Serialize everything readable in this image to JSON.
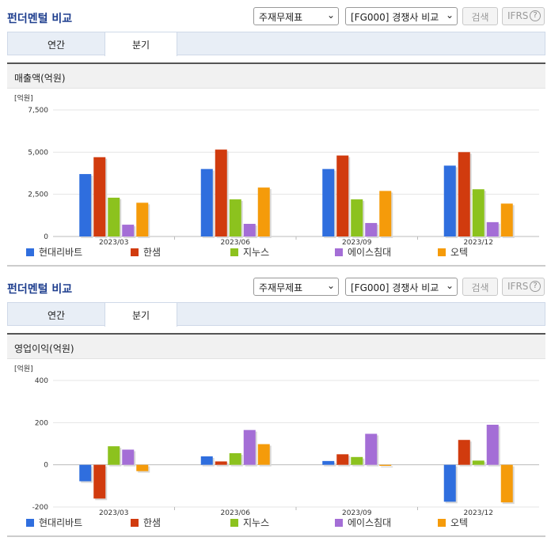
{
  "sections": [
    {
      "title": "펀더멘털 비교",
      "select1": "주재무제표",
      "select2": "[FG000] 경쟁사 비교",
      "search_label": "검색",
      "ifrs_label": "IFRS",
      "help_glyph": "?",
      "tabs": [
        "연간",
        "분기"
      ],
      "panel_title": "매출액(억원)"
    },
    {
      "title": "펀더멘털 비교",
      "select1": "주재무제표",
      "select2": "[FG000] 경쟁사 비교",
      "search_label": "검색",
      "ifrs_label": "IFRS",
      "help_glyph": "?",
      "tabs": [
        "연간",
        "분기"
      ],
      "panel_title": "영업이익(억원)"
    }
  ],
  "chart_data": [
    {
      "type": "bar",
      "unit_label": "[억원]",
      "categories": [
        "2023/03",
        "2023/06",
        "2023/09",
        "2023/12"
      ],
      "ylim": [
        0,
        7500
      ],
      "yticks": [
        0,
        2500,
        5000,
        7500
      ],
      "ytick_labels": [
        "0",
        "2,500",
        "5,000",
        "7,500"
      ],
      "series": [
        {
          "name": "현대리바트",
          "color": "#2f6ede",
          "values": [
            3700,
            4000,
            4000,
            4200
          ]
        },
        {
          "name": "한샘",
          "color": "#d13b0e",
          "values": [
            4700,
            5150,
            4800,
            5000
          ]
        },
        {
          "name": "지누스",
          "color": "#8cc21e",
          "values": [
            2300,
            2200,
            2200,
            2800
          ]
        },
        {
          "name": "에이스침대",
          "color": "#a46ed6",
          "values": [
            700,
            750,
            800,
            850
          ]
        },
        {
          "name": "오텍",
          "color": "#f59b0a",
          "values": [
            2000,
            2900,
            2700,
            1950
          ]
        }
      ]
    },
    {
      "type": "bar",
      "unit_label": "[억원]",
      "categories": [
        "2023/03",
        "2023/06",
        "2023/09",
        "2023/12"
      ],
      "ylim": [
        -200,
        400
      ],
      "yticks": [
        -200,
        0,
        200,
        400
      ],
      "ytick_labels": [
        "-200",
        "0",
        "200",
        "400"
      ],
      "series": [
        {
          "name": "현대리바트",
          "color": "#2f6ede",
          "values": [
            -78,
            40,
            18,
            -175
          ]
        },
        {
          "name": "한샘",
          "color": "#d13b0e",
          "values": [
            -160,
            16,
            50,
            118
          ]
        },
        {
          "name": "지누스",
          "color": "#8cc21e",
          "values": [
            88,
            55,
            37,
            20
          ]
        },
        {
          "name": "에이스침대",
          "color": "#a46ed6",
          "values": [
            72,
            165,
            147,
            190
          ]
        },
        {
          "name": "오텍",
          "color": "#f59b0a",
          "values": [
            -30,
            98,
            -5,
            -178
          ]
        }
      ]
    }
  ]
}
